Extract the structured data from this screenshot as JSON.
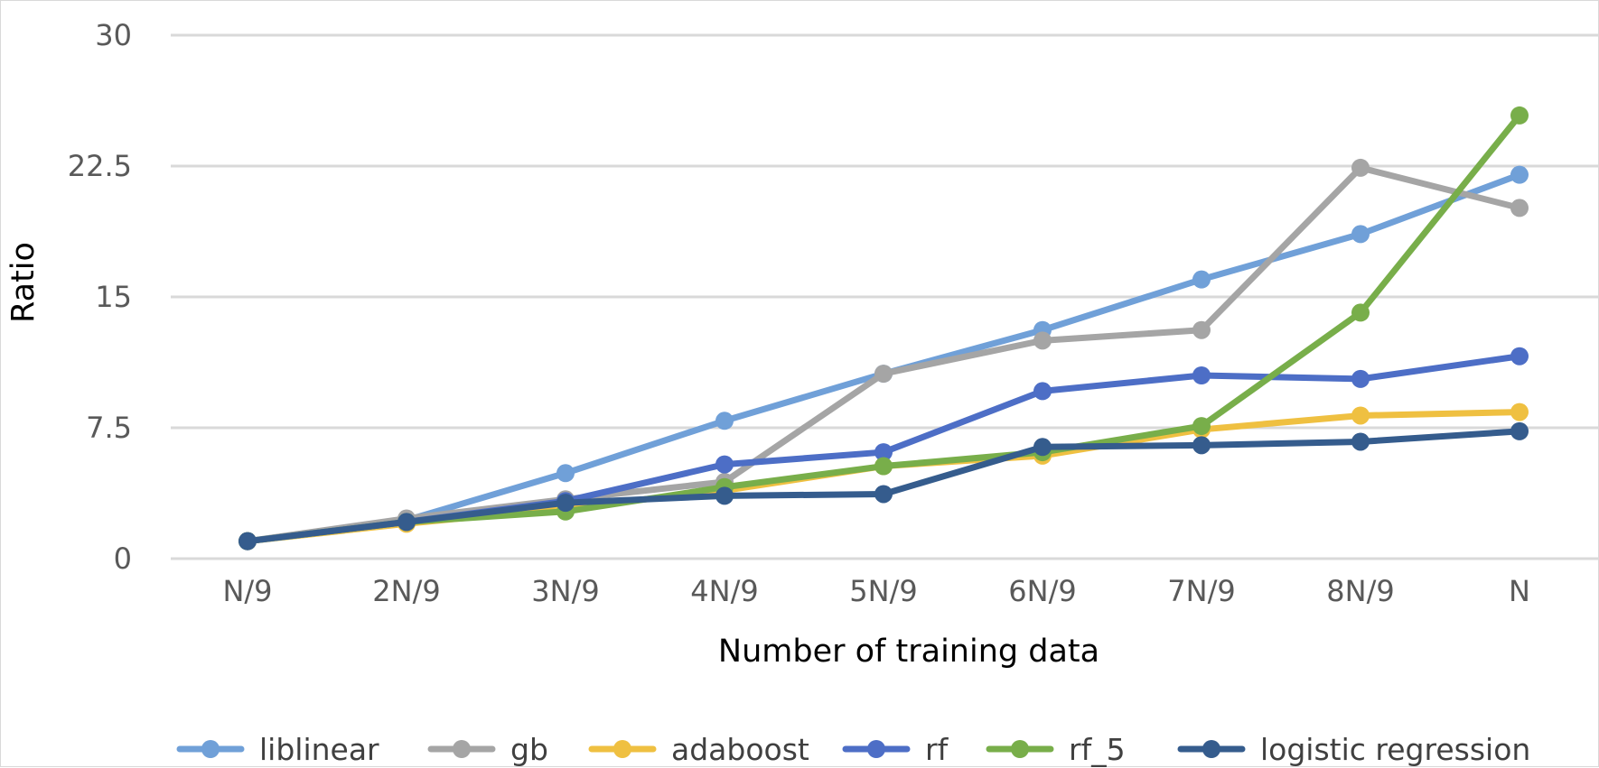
{
  "chart_data": {
    "type": "line",
    "title": "",
    "xlabel": "Number of training data",
    "ylabel": "Ratio",
    "categories": [
      "N/9",
      "2N/9",
      "3N/9",
      "4N/9",
      "5N/9",
      "6N/9",
      "7N/9",
      "8N/9",
      "N"
    ],
    "ylim": [
      0,
      30
    ],
    "yticks": [
      "0",
      "7.5",
      "15",
      "22.5",
      "30"
    ],
    "grid": true,
    "legend_position": "bottom",
    "series": [
      {
        "name": "liblinear",
        "color": "#70a0d8",
        "values": [
          1.0,
          2.2,
          4.9,
          7.9,
          10.6,
          13.1,
          16.0,
          18.6,
          22.0
        ]
      },
      {
        "name": "gb",
        "color": "#a5a5a5",
        "values": [
          1.0,
          2.3,
          3.4,
          4.4,
          10.6,
          12.5,
          13.1,
          22.4,
          20.1
        ]
      },
      {
        "name": "adaboost",
        "color": "#efc041",
        "values": [
          1.0,
          2.0,
          2.9,
          3.9,
          5.3,
          5.9,
          7.4,
          8.2,
          8.4
        ]
      },
      {
        "name": "rf",
        "color": "#4d6ec6",
        "values": [
          1.0,
          2.1,
          3.3,
          5.4,
          6.1,
          9.6,
          10.5,
          10.3,
          11.6
        ]
      },
      {
        "name": "rf_5",
        "color": "#78ae4a",
        "values": [
          1.0,
          2.1,
          2.7,
          4.1,
          5.3,
          6.1,
          7.6,
          14.1,
          25.4
        ]
      },
      {
        "name": "logistic regression",
        "color": "#355c8d",
        "values": [
          1.0,
          2.1,
          3.2,
          3.6,
          3.7,
          6.4,
          6.5,
          6.7,
          7.3
        ]
      }
    ]
  }
}
